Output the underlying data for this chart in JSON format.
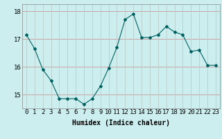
{
  "x": [
    0,
    1,
    2,
    3,
    4,
    5,
    6,
    7,
    8,
    9,
    10,
    11,
    12,
    13,
    14,
    15,
    16,
    17,
    18,
    19,
    20,
    21,
    22,
    23
  ],
  "y": [
    17.15,
    16.65,
    15.9,
    15.5,
    14.85,
    14.85,
    14.85,
    14.65,
    14.85,
    15.3,
    15.95,
    16.7,
    17.7,
    17.9,
    17.05,
    17.05,
    17.15,
    17.45,
    17.25,
    17.15,
    16.55,
    16.6,
    16.05,
    16.05
  ],
  "line_color": "#006060",
  "marker": "D",
  "marker_size": 2.0,
  "bg_color": "#cceeee",
  "grid_color_h": "#cc9999",
  "grid_color_v": "#bbcccc",
  "xlabel": "Humidex (Indice chaleur)",
  "ylim": [
    14.5,
    18.25
  ],
  "yticks": [
    15,
    16,
    17,
    18
  ],
  "xlim": [
    -0.5,
    23.5
  ],
  "xticks": [
    0,
    1,
    2,
    3,
    4,
    5,
    6,
    7,
    8,
    9,
    10,
    11,
    12,
    13,
    14,
    15,
    16,
    17,
    18,
    19,
    20,
    21,
    22,
    23
  ],
  "xlabel_fontsize": 7,
  "tick_fontsize": 6.5
}
